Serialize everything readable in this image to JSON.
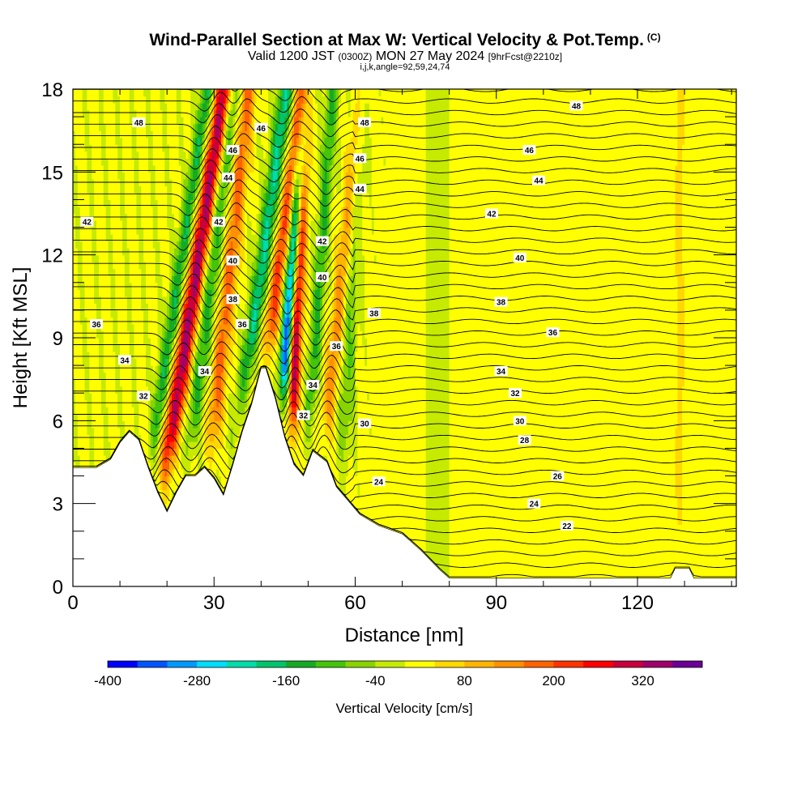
{
  "header": {
    "title": "Wind-Parallel Section at Max W: Vertical Velocity & Pot.Temp.",
    "title_tag": "(C)",
    "valid_prefix": "Valid 1200 JST",
    "valid_utc": "(0300Z)",
    "valid_date": "MON 27 May 2024",
    "forecast": "[9hrFcst@2210z]",
    "grid_info": "i,j,k,angle=92,59,24,74"
  },
  "chart_data": {
    "type": "heatmap",
    "xlabel": "Distance [nm]",
    "ylabel": "Height [Kft MSL]",
    "xlim": [
      0,
      141
    ],
    "ylim": [
      0,
      18
    ],
    "x_ticks": [
      0,
      30,
      60,
      90,
      120
    ],
    "y_ticks": [
      0,
      3,
      6,
      9,
      12,
      15,
      18
    ],
    "colorbar": {
      "label": "Vertical Velocity [cm/s]",
      "tick_labels": [
        "-400",
        "-280",
        "-160",
        "-40",
        "80",
        "200",
        "320"
      ],
      "tick_values": [
        -400,
        -280,
        -160,
        -40,
        80,
        200,
        320
      ],
      "range": [
        -400,
        400
      ],
      "colors": [
        "#0000ff",
        "#0055ff",
        "#0099ff",
        "#00ddff",
        "#00dcaa",
        "#00c46c",
        "#16aa24",
        "#44c40a",
        "#88d400",
        "#c6ea00",
        "#ffff00",
        "#ffd800",
        "#ffb400",
        "#ff9000",
        "#ff6200",
        "#ff3200",
        "#ff0000",
        "#c8003c",
        "#a0006c",
        "#6a0096"
      ]
    },
    "terrain": [
      {
        "x": 0,
        "h": 4.3
      },
      {
        "x": 5,
        "h": 4.3
      },
      {
        "x": 8,
        "h": 4.6
      },
      {
        "x": 10,
        "h": 5.2
      },
      {
        "x": 12,
        "h": 5.6
      },
      {
        "x": 14,
        "h": 5.3
      },
      {
        "x": 16,
        "h": 4.3
      },
      {
        "x": 18,
        "h": 3.4
      },
      {
        "x": 20,
        "h": 2.7
      },
      {
        "x": 22,
        "h": 3.4
      },
      {
        "x": 24,
        "h": 4.0
      },
      {
        "x": 26,
        "h": 4.0
      },
      {
        "x": 28,
        "h": 4.3
      },
      {
        "x": 30,
        "h": 3.9
      },
      {
        "x": 32,
        "h": 3.3
      },
      {
        "x": 34,
        "h": 4.4
      },
      {
        "x": 36,
        "h": 5.6
      },
      {
        "x": 38,
        "h": 6.6
      },
      {
        "x": 40,
        "h": 7.9
      },
      {
        "x": 41,
        "h": 7.9
      },
      {
        "x": 43,
        "h": 6.8
      },
      {
        "x": 45,
        "h": 5.4
      },
      {
        "x": 47,
        "h": 4.4
      },
      {
        "x": 49,
        "h": 4.0
      },
      {
        "x": 51,
        "h": 4.9
      },
      {
        "x": 54,
        "h": 4.5
      },
      {
        "x": 56,
        "h": 3.6
      },
      {
        "x": 58,
        "h": 3.2
      },
      {
        "x": 61,
        "h": 2.6
      },
      {
        "x": 65,
        "h": 2.2
      },
      {
        "x": 70,
        "h": 1.9
      },
      {
        "x": 74,
        "h": 1.3
      },
      {
        "x": 78,
        "h": 0.6
      },
      {
        "x": 80,
        "h": 0.3
      },
      {
        "x": 127,
        "h": 0.3
      },
      {
        "x": 128,
        "h": 0.65
      },
      {
        "x": 131,
        "h": 0.65
      },
      {
        "x": 132,
        "h": 0.3
      },
      {
        "x": 141,
        "h": 0.3
      }
    ],
    "updrafts": [
      {
        "x": 16.0,
        "amp": 330,
        "tilt": 0.9,
        "width": 1.9
      },
      {
        "x": 26.5,
        "amp": 170,
        "tilt": 0.6,
        "width": 1.6
      },
      {
        "x": 34.5,
        "amp": 210,
        "tilt": 0.8,
        "width": 1.6
      },
      {
        "x": 45.0,
        "amp": 340,
        "tilt": 0.25,
        "width": 1.3
      },
      {
        "x": 50.5,
        "amp": 140,
        "tilt": 0.6,
        "width": 1.5
      },
      {
        "x": 129.0,
        "amp": 100,
        "tilt": 0.0,
        "width": 1.0
      }
    ],
    "downdrafts": [
      {
        "x": 12.5,
        "amp": -170,
        "tilt": 0.9,
        "width": 1.5
      },
      {
        "x": 21.5,
        "amp": -150,
        "tilt": 0.7,
        "width": 1.7
      },
      {
        "x": 31.0,
        "amp": -210,
        "tilt": 0.8,
        "width": 1.7
      },
      {
        "x": 41.5,
        "amp": -390,
        "tilt": 0.45,
        "width": 1.3
      },
      {
        "x": 48.0,
        "amp": -140,
        "tilt": 0.4,
        "width": 1.3
      },
      {
        "x": 56.0,
        "amp": -90,
        "tilt": 0.3,
        "width": 1.8
      }
    ],
    "contour_labels": [
      {
        "x": 14,
        "y": 16.8,
        "label": "48"
      },
      {
        "x": 62,
        "y": 16.8,
        "label": "48"
      },
      {
        "x": 107,
        "y": 17.4,
        "label": "48"
      },
      {
        "x": 40,
        "y": 16.6,
        "label": "46"
      },
      {
        "x": 97,
        "y": 15.8,
        "label": "46"
      },
      {
        "x": 61,
        "y": 15.5,
        "label": "46"
      },
      {
        "x": 34,
        "y": 15.8,
        "label": "46"
      },
      {
        "x": 33,
        "y": 14.8,
        "label": "44"
      },
      {
        "x": 61,
        "y": 14.4,
        "label": "44"
      },
      {
        "x": 99,
        "y": 14.7,
        "label": "44"
      },
      {
        "x": 3,
        "y": 13.2,
        "label": "42"
      },
      {
        "x": 31,
        "y": 13.2,
        "label": "42"
      },
      {
        "x": 53,
        "y": 12.5,
        "label": "42"
      },
      {
        "x": 89,
        "y": 13.5,
        "label": "42"
      },
      {
        "x": 34,
        "y": 11.8,
        "label": "40"
      },
      {
        "x": 53,
        "y": 11.2,
        "label": "40"
      },
      {
        "x": 95,
        "y": 11.9,
        "label": "40"
      },
      {
        "x": 34,
        "y": 10.4,
        "label": "38"
      },
      {
        "x": 64,
        "y": 9.9,
        "label": "38"
      },
      {
        "x": 91,
        "y": 10.3,
        "label": "38"
      },
      {
        "x": 5,
        "y": 9.5,
        "label": "36"
      },
      {
        "x": 36,
        "y": 9.5,
        "label": "36"
      },
      {
        "x": 56,
        "y": 8.7,
        "label": "36"
      },
      {
        "x": 102,
        "y": 9.2,
        "label": "36"
      },
      {
        "x": 11,
        "y": 8.2,
        "label": "34"
      },
      {
        "x": 28,
        "y": 7.8,
        "label": "34"
      },
      {
        "x": 51,
        "y": 7.3,
        "label": "34"
      },
      {
        "x": 91,
        "y": 7.8,
        "label": "34"
      },
      {
        "x": 15,
        "y": 6.9,
        "label": "32"
      },
      {
        "x": 49,
        "y": 6.2,
        "label": "32"
      },
      {
        "x": 94,
        "y": 7.0,
        "label": "32"
      },
      {
        "x": 62,
        "y": 5.9,
        "label": "30"
      },
      {
        "x": 95,
        "y": 6.0,
        "label": "30"
      },
      {
        "x": 96,
        "y": 5.3,
        "label": "28"
      },
      {
        "x": 103,
        "y": 4.0,
        "label": "26"
      },
      {
        "x": 65,
        "y": 3.8,
        "label": "24"
      },
      {
        "x": 98,
        "y": 3.0,
        "label": "24"
      },
      {
        "x": 105,
        "y": 2.2,
        "label": "22"
      }
    ]
  }
}
